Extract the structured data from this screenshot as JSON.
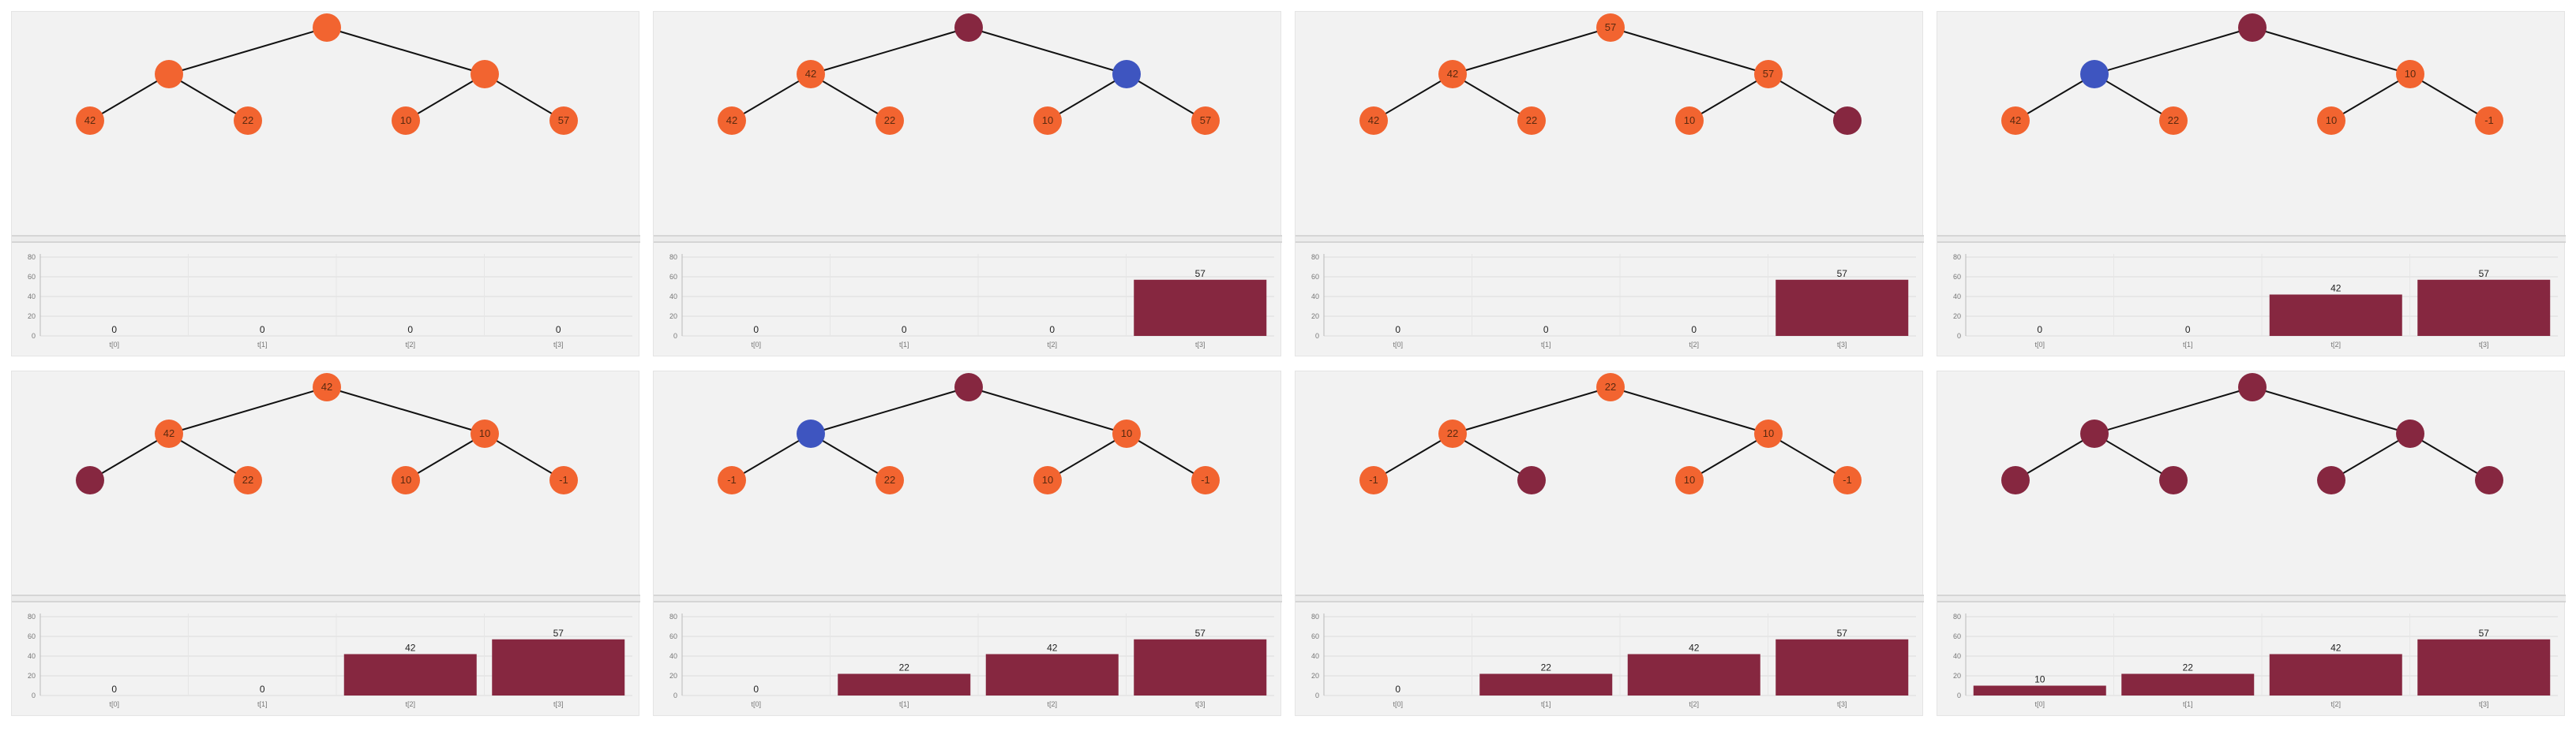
{
  "colors": {
    "node_active": "#f26430",
    "node_done": "#862740",
    "node_swap": "#3e55c0",
    "bar": "#862740",
    "edge": "#111111",
    "grid": "#dcdcdc"
  },
  "chart_meta": {
    "yticks": [
      "80",
      "60",
      "40",
      "20",
      "0"
    ],
    "xticks": [
      "t[0]",
      "t[1]",
      "t[2]",
      "t[3]"
    ]
  },
  "steps": [
    {
      "nodes": [
        {
          "label": "",
          "state": "active"
        },
        {
          "label": "",
          "state": "active"
        },
        {
          "label": "",
          "state": "active"
        },
        {
          "label": "42",
          "state": "active"
        },
        {
          "label": "22",
          "state": "active"
        },
        {
          "label": "10",
          "state": "active"
        },
        {
          "label": "57",
          "state": "active"
        }
      ],
      "bars": [
        0,
        0,
        0,
        0
      ]
    },
    {
      "nodes": [
        {
          "label": "",
          "state": "done"
        },
        {
          "label": "42",
          "state": "active"
        },
        {
          "label": "",
          "state": "swap"
        },
        {
          "label": "42",
          "state": "active"
        },
        {
          "label": "22",
          "state": "active"
        },
        {
          "label": "10",
          "state": "active"
        },
        {
          "label": "57",
          "state": "active"
        }
      ],
      "bars": [
        0,
        0,
        0,
        57
      ]
    },
    {
      "nodes": [
        {
          "label": "57",
          "state": "active"
        },
        {
          "label": "42",
          "state": "active"
        },
        {
          "label": "57",
          "state": "active"
        },
        {
          "label": "42",
          "state": "active"
        },
        {
          "label": "22",
          "state": "active"
        },
        {
          "label": "10",
          "state": "active"
        },
        {
          "label": "",
          "state": "done"
        }
      ],
      "bars": [
        0,
        0,
        0,
        57
      ]
    },
    {
      "nodes": [
        {
          "label": "",
          "state": "done"
        },
        {
          "label": "",
          "state": "swap"
        },
        {
          "label": "10",
          "state": "active"
        },
        {
          "label": "42",
          "state": "active"
        },
        {
          "label": "22",
          "state": "active"
        },
        {
          "label": "10",
          "state": "active"
        },
        {
          "label": "-1",
          "state": "active"
        }
      ],
      "bars": [
        0,
        0,
        42,
        57
      ]
    },
    {
      "nodes": [
        {
          "label": "42",
          "state": "active"
        },
        {
          "label": "42",
          "state": "active"
        },
        {
          "label": "10",
          "state": "active"
        },
        {
          "label": "",
          "state": "done"
        },
        {
          "label": "22",
          "state": "active"
        },
        {
          "label": "10",
          "state": "active"
        },
        {
          "label": "-1",
          "state": "active"
        }
      ],
      "bars": [
        0,
        0,
        42,
        57
      ]
    },
    {
      "nodes": [
        {
          "label": "",
          "state": "done"
        },
        {
          "label": "",
          "state": "swap"
        },
        {
          "label": "10",
          "state": "active"
        },
        {
          "label": "-1",
          "state": "active"
        },
        {
          "label": "22",
          "state": "active"
        },
        {
          "label": "10",
          "state": "active"
        },
        {
          "label": "-1",
          "state": "active"
        }
      ],
      "bars": [
        0,
        22,
        42,
        57
      ]
    },
    {
      "nodes": [
        {
          "label": "22",
          "state": "active"
        },
        {
          "label": "22",
          "state": "active"
        },
        {
          "label": "10",
          "state": "active"
        },
        {
          "label": "-1",
          "state": "active"
        },
        {
          "label": "",
          "state": "done"
        },
        {
          "label": "10",
          "state": "active"
        },
        {
          "label": "-1",
          "state": "active"
        }
      ],
      "bars": [
        0,
        22,
        42,
        57
      ]
    },
    {
      "nodes": [
        {
          "label": "",
          "state": "done"
        },
        {
          "label": "",
          "state": "done"
        },
        {
          "label": "",
          "state": "done"
        },
        {
          "label": "",
          "state": "done"
        },
        {
          "label": "",
          "state": "done"
        },
        {
          "label": "",
          "state": "done"
        },
        {
          "label": "",
          "state": "done"
        }
      ],
      "bars": [
        10,
        22,
        42,
        57
      ]
    }
  ],
  "chart_data": [
    {
      "type": "bar",
      "categories": [
        "t[0]",
        "t[1]",
        "t[2]",
        "t[3]"
      ],
      "values": [
        0,
        0,
        0,
        0
      ],
      "ylim": [
        0,
        80
      ]
    },
    {
      "type": "bar",
      "categories": [
        "t[0]",
        "t[1]",
        "t[2]",
        "t[3]"
      ],
      "values": [
        0,
        0,
        0,
        57
      ],
      "ylim": [
        0,
        80
      ]
    },
    {
      "type": "bar",
      "categories": [
        "t[0]",
        "t[1]",
        "t[2]",
        "t[3]"
      ],
      "values": [
        0,
        0,
        0,
        57
      ],
      "ylim": [
        0,
        80
      ]
    },
    {
      "type": "bar",
      "categories": [
        "t[0]",
        "t[1]",
        "t[2]",
        "t[3]"
      ],
      "values": [
        0,
        0,
        42,
        57
      ],
      "ylim": [
        0,
        80
      ]
    },
    {
      "type": "bar",
      "categories": [
        "t[0]",
        "t[1]",
        "t[2]",
        "t[3]"
      ],
      "values": [
        0,
        0,
        42,
        57
      ],
      "ylim": [
        0,
        80
      ]
    },
    {
      "type": "bar",
      "categories": [
        "t[0]",
        "t[1]",
        "t[2]",
        "t[3]"
      ],
      "values": [
        0,
        22,
        42,
        57
      ],
      "ylim": [
        0,
        80
      ]
    },
    {
      "type": "bar",
      "categories": [
        "t[0]",
        "t[1]",
        "t[2]",
        "t[3]"
      ],
      "values": [
        0,
        22,
        42,
        57
      ],
      "ylim": [
        0,
        80
      ]
    },
    {
      "type": "bar",
      "categories": [
        "t[0]",
        "t[1]",
        "t[2]",
        "t[3]"
      ],
      "values": [
        10,
        22,
        42,
        57
      ],
      "ylim": [
        0,
        80
      ]
    }
  ]
}
